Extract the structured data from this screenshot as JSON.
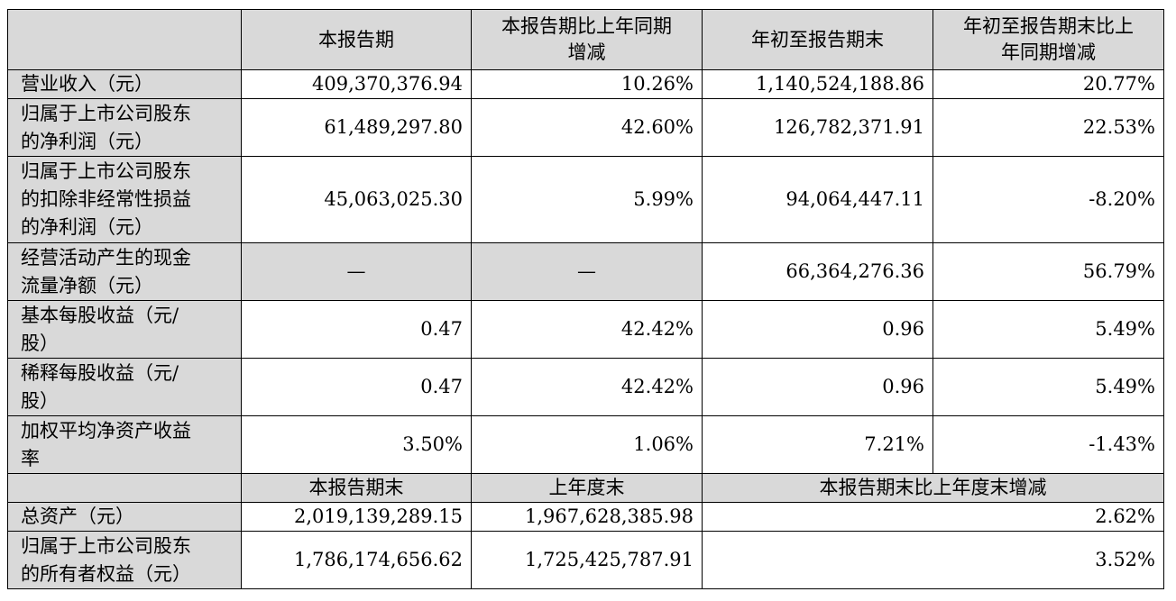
{
  "header": {
    "col1": "本报告期",
    "col2": [
      "本报告期比上年同期",
      "增减"
    ],
    "col3": "年初至报告期末",
    "col4": [
      "年初至报告期末比上",
      "年同期增减"
    ]
  },
  "rows": [
    {
      "label": [
        "营业收入（元）"
      ],
      "v1": "409,370,376.94",
      "v2": "10.26%",
      "v3": "1,140,524,188.86",
      "v4": "20.77%"
    },
    {
      "label": [
        "归属于上市公司股东",
        "的净利润（元）"
      ],
      "v1": "61,489,297.80",
      "v2": "42.60%",
      "v3": "126,782,371.91",
      "v4": "22.53%"
    },
    {
      "label": [
        "归属于上市公司股东",
        "的扣除非经常性损益",
        "的净利润（元）"
      ],
      "v1": "45,063,025.30",
      "v2": "5.99%",
      "v3": "94,064,447.11",
      "v4": "-8.20%"
    },
    {
      "label": [
        "经营活动产生的现金",
        "流量净额（元）"
      ],
      "v1": "—",
      "v2": "—",
      "v3": "66,364,276.36",
      "v4": "56.79%"
    },
    {
      "label": [
        "基本每股收益（元/",
        "股）"
      ],
      "v1": "0.47",
      "v2": "42.42%",
      "v3": "0.96",
      "v4": "5.49%"
    },
    {
      "label": [
        "稀释每股收益（元/",
        "股）"
      ],
      "v1": "0.47",
      "v2": "42.42%",
      "v3": "0.96",
      "v4": "5.49%"
    },
    {
      "label": [
        "加权平均净资产收益",
        "率"
      ],
      "v1": "3.50%",
      "v2": "1.06%",
      "v3": "7.21%",
      "v4": "-1.43%"
    }
  ],
  "header2": {
    "col1": "本报告期末",
    "col2": "上年度末",
    "col3": "本报告期末比上年度末增减"
  },
  "rows2": [
    {
      "label": [
        "总资产（元）"
      ],
      "v1": "2,019,139,289.15",
      "v2": "1,967,628,385.98",
      "v3": "2.62%"
    },
    {
      "label": [
        "归属于上市公司股东",
        "的所有者权益（元）"
      ],
      "v1": "1,786,174,656.62",
      "v2": "1,725,425,787.91",
      "v3": "3.52%"
    }
  ]
}
